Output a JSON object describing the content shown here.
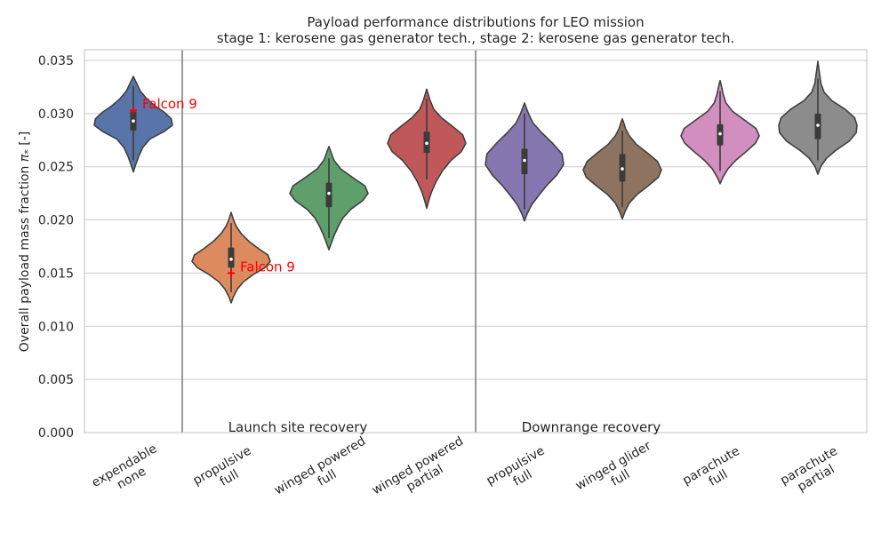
{
  "chart_data": {
    "type": "violin",
    "title": "Payload performance distributions for LEO mission",
    "subtitle": "stage 1: kerosene gas generator tech., stage 2: kerosene gas generator tech.",
    "ylabel": "Overall payload mass fraction π* [-]",
    "ylabel_parts": {
      "text": "Overall payload mass fraction ",
      "symbol": "π",
      "subscript": "*",
      "unit": " [-]"
    },
    "xlabel": "",
    "ylim": [
      0,
      0.036
    ],
    "yticks": [
      "0.000",
      "0.005",
      "0.010",
      "0.015",
      "0.020",
      "0.025",
      "0.030",
      "0.035"
    ],
    "ytick_values": [
      0,
      0.005,
      0.01,
      0.015,
      0.02,
      0.025,
      0.03,
      0.035
    ],
    "grid": true,
    "categories": [
      {
        "line1": "expendable",
        "line2": "none",
        "color": "#5874a8",
        "min": 0.0245,
        "max": 0.0335,
        "q1": 0.0284,
        "median": 0.0293,
        "q3": 0.0302,
        "whisker_lo": 0.0256,
        "whisker_hi": 0.0326,
        "profile": [
          [
            0.0245,
            0.0
          ],
          [
            0.0252,
            0.06
          ],
          [
            0.026,
            0.14
          ],
          [
            0.0268,
            0.24
          ],
          [
            0.0276,
            0.42
          ],
          [
            0.0283,
            0.78
          ],
          [
            0.0289,
            1.0
          ],
          [
            0.0295,
            0.97
          ],
          [
            0.0301,
            0.8
          ],
          [
            0.0307,
            0.56
          ],
          [
            0.0314,
            0.34
          ],
          [
            0.0321,
            0.18
          ],
          [
            0.0328,
            0.09
          ],
          [
            0.0335,
            0.0
          ]
        ]
      },
      {
        "line1": "propulsive",
        "line2": "full",
        "color": "#dd8a5f",
        "min": 0.0122,
        "max": 0.0207,
        "q1": 0.0155,
        "median": 0.0163,
        "q3": 0.0174,
        "whisker_lo": 0.0132,
        "whisker_hi": 0.0197,
        "profile": [
          [
            0.0122,
            0.0
          ],
          [
            0.0128,
            0.06
          ],
          [
            0.0135,
            0.16
          ],
          [
            0.0142,
            0.32
          ],
          [
            0.0149,
            0.58
          ],
          [
            0.0155,
            0.86
          ],
          [
            0.0161,
            1.0
          ],
          [
            0.0167,
            0.94
          ],
          [
            0.0173,
            0.7
          ],
          [
            0.018,
            0.45
          ],
          [
            0.0187,
            0.26
          ],
          [
            0.0194,
            0.13
          ],
          [
            0.02,
            0.06
          ],
          [
            0.0207,
            0.0
          ]
        ]
      },
      {
        "line1": "winged powered",
        "line2": "full",
        "color": "#5e9f6c",
        "min": 0.0172,
        "max": 0.0269,
        "q1": 0.0212,
        "median": 0.0225,
        "q3": 0.0235,
        "whisker_lo": 0.0183,
        "whisker_hi": 0.0258,
        "profile": [
          [
            0.0172,
            0.0
          ],
          [
            0.0178,
            0.06
          ],
          [
            0.0186,
            0.14
          ],
          [
            0.0194,
            0.24
          ],
          [
            0.0202,
            0.36
          ],
          [
            0.021,
            0.56
          ],
          [
            0.0218,
            0.86
          ],
          [
            0.0225,
            1.0
          ],
          [
            0.0232,
            0.92
          ],
          [
            0.024,
            0.6
          ],
          [
            0.0248,
            0.3
          ],
          [
            0.0256,
            0.13
          ],
          [
            0.0263,
            0.06
          ],
          [
            0.0269,
            0.0
          ]
        ]
      },
      {
        "line1": "winged powered",
        "line2": "partial",
        "color": "#c05859",
        "min": 0.0211,
        "max": 0.0323,
        "q1": 0.0263,
        "median": 0.0272,
        "q3": 0.0283,
        "whisker_lo": 0.0238,
        "whisker_hi": 0.0314,
        "profile": [
          [
            0.0211,
            0.0
          ],
          [
            0.0218,
            0.05
          ],
          [
            0.0226,
            0.12
          ],
          [
            0.0236,
            0.24
          ],
          [
            0.0246,
            0.4
          ],
          [
            0.0256,
            0.62
          ],
          [
            0.0264,
            0.88
          ],
          [
            0.0272,
            1.0
          ],
          [
            0.028,
            0.92
          ],
          [
            0.0288,
            0.66
          ],
          [
            0.0296,
            0.38
          ],
          [
            0.0304,
            0.18
          ],
          [
            0.0313,
            0.08
          ],
          [
            0.0323,
            0.0
          ]
        ]
      },
      {
        "line1": "propulsive",
        "line2": "full",
        "color": "#8677b0",
        "min": 0.0199,
        "max": 0.031,
        "q1": 0.0243,
        "median": 0.0256,
        "q3": 0.0267,
        "whisker_lo": 0.021,
        "whisker_hi": 0.03,
        "profile": [
          [
            0.0199,
            0.0
          ],
          [
            0.0206,
            0.07
          ],
          [
            0.0214,
            0.18
          ],
          [
            0.0222,
            0.34
          ],
          [
            0.0232,
            0.56
          ],
          [
            0.0242,
            0.82
          ],
          [
            0.0252,
            1.0
          ],
          [
            0.0262,
            0.96
          ],
          [
            0.0272,
            0.72
          ],
          [
            0.0282,
            0.44
          ],
          [
            0.0291,
            0.22
          ],
          [
            0.03,
            0.1
          ],
          [
            0.0305,
            0.05
          ],
          [
            0.031,
            0.0
          ]
        ]
      },
      {
        "line1": "winged glider",
        "line2": "full",
        "color": "#8e7460",
        "min": 0.0201,
        "max": 0.0295,
        "q1": 0.0236,
        "median": 0.0248,
        "q3": 0.0262,
        "whisker_lo": 0.0212,
        "whisker_hi": 0.0284,
        "profile": [
          [
            0.0201,
            0.0
          ],
          [
            0.0208,
            0.07
          ],
          [
            0.0216,
            0.18
          ],
          [
            0.0224,
            0.38
          ],
          [
            0.0232,
            0.66
          ],
          [
            0.024,
            0.92
          ],
          [
            0.0247,
            1.0
          ],
          [
            0.0255,
            0.9
          ],
          [
            0.0263,
            0.64
          ],
          [
            0.0271,
            0.36
          ],
          [
            0.0279,
            0.18
          ],
          [
            0.0286,
            0.08
          ],
          [
            0.0291,
            0.04
          ],
          [
            0.0295,
            0.0
          ]
        ]
      },
      {
        "line1": "parachute",
        "line2": "full",
        "color": "#d18ebf",
        "min": 0.0234,
        "max": 0.0331,
        "q1": 0.027,
        "median": 0.0281,
        "q3": 0.029,
        "whisker_lo": 0.0246,
        "whisker_hi": 0.0321,
        "profile": [
          [
            0.0234,
            0.0
          ],
          [
            0.024,
            0.07
          ],
          [
            0.0248,
            0.2
          ],
          [
            0.0256,
            0.4
          ],
          [
            0.0264,
            0.66
          ],
          [
            0.0272,
            0.9
          ],
          [
            0.0279,
            1.0
          ],
          [
            0.0286,
            0.92
          ],
          [
            0.0294,
            0.62
          ],
          [
            0.0302,
            0.32
          ],
          [
            0.031,
            0.15
          ],
          [
            0.0318,
            0.08
          ],
          [
            0.0325,
            0.04
          ],
          [
            0.0331,
            0.0
          ]
        ]
      },
      {
        "line1": "parachute",
        "line2": "partial",
        "color": "#8c8c8c",
        "min": 0.0243,
        "max": 0.0349,
        "q1": 0.0276,
        "median": 0.0289,
        "q3": 0.03,
        "whisker_lo": 0.0256,
        "whisker_hi": 0.0333,
        "profile": [
          [
            0.0243,
            0.0
          ],
          [
            0.025,
            0.07
          ],
          [
            0.0258,
            0.22
          ],
          [
            0.0266,
            0.48
          ],
          [
            0.0274,
            0.8
          ],
          [
            0.0282,
            0.98
          ],
          [
            0.0289,
            1.0
          ],
          [
            0.0296,
            0.94
          ],
          [
            0.0304,
            0.7
          ],
          [
            0.0312,
            0.36
          ],
          [
            0.032,
            0.16
          ],
          [
            0.0328,
            0.08
          ],
          [
            0.0338,
            0.04
          ],
          [
            0.0349,
            0.0
          ]
        ]
      }
    ],
    "separators_after": [
      0,
      3
    ],
    "regions": [
      {
        "label": "Launch site recovery",
        "start_category": 1
      },
      {
        "label": "Downrange recovery",
        "start_category": 4
      }
    ],
    "annotations": [
      {
        "label": "Falcon 9",
        "category": 0,
        "y": 0.0303,
        "marker": "+",
        "color": "#ff0000"
      },
      {
        "label": "Falcon 9",
        "category": 1,
        "y": 0.015,
        "marker": "+",
        "color": "#ff0000"
      }
    ]
  }
}
